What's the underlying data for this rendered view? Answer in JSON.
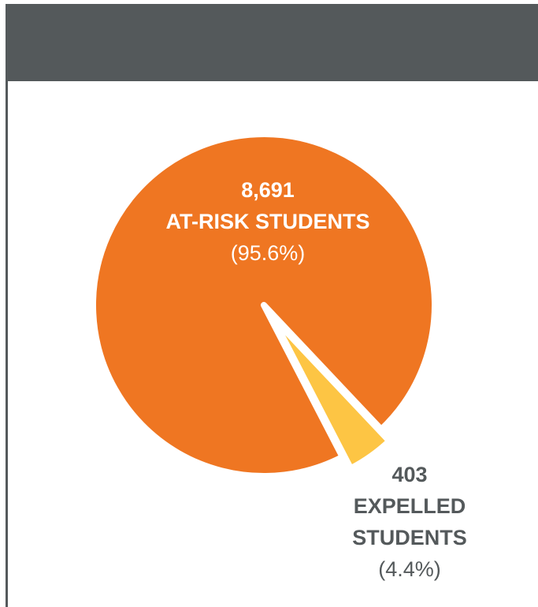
{
  "chart_data": {
    "type": "pie",
    "title": "",
    "slices": [
      {
        "label": "AT-RISK STUDENTS",
        "value": 8691,
        "value_text": "8,691",
        "percent_text": "(95.6%)",
        "color": "#ef7622"
      },
      {
        "label": "EXPELLED STUDENTS",
        "value": 403,
        "value_text": "403",
        "percent_text": "(4.4%)",
        "label_lines": [
          "EXPELLED",
          "STUDENTS"
        ],
        "color": "#fdc544"
      }
    ],
    "legend": "none"
  },
  "colors": {
    "header_bar": "#54595b",
    "label_dark": "#54595b",
    "label_light": "#ffffff"
  }
}
